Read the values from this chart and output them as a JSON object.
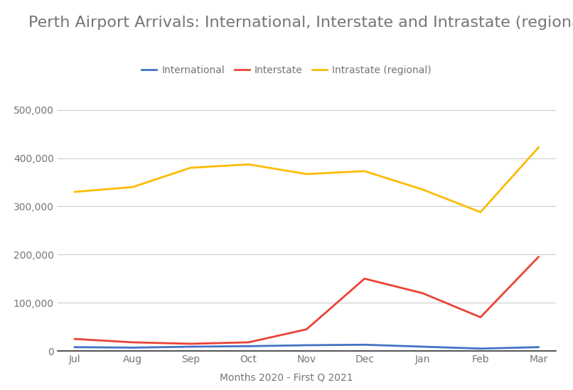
{
  "title": "Perth Airport Arrivals: International, Interstate and Intrastate (regional)",
  "xlabel": "Months 2020 - First Q 2021",
  "months": [
    "Jul",
    "Aug",
    "Sep",
    "Oct",
    "Nov",
    "Dec",
    "Jan",
    "Feb",
    "Mar"
  ],
  "international": [
    8000,
    7000,
    9000,
    10000,
    12000,
    13000,
    9000,
    5000,
    8000
  ],
  "interstate": [
    25000,
    18000,
    15000,
    18000,
    45000,
    150000,
    120000,
    70000,
    195000
  ],
  "intrastate": [
    330000,
    340000,
    380000,
    387000,
    367000,
    373000,
    335000,
    288000,
    422000
  ],
  "international_color": "#4472c4",
  "interstate_color": "#ea4335",
  "intrastate_color": "#fbbc04",
  "ylim": [
    0,
    550000
  ],
  "yticks": [
    0,
    100000,
    200000,
    300000,
    400000,
    500000
  ],
  "legend_labels": [
    "International",
    "Interstate",
    "Intrastate (regional)"
  ],
  "title_fontsize": 16,
  "axis_label_fontsize": 10,
  "tick_fontsize": 10,
  "legend_fontsize": 10,
  "background_color": "#ffffff",
  "grid_color": "#cccccc",
  "title_color": "#757575",
  "tick_color": "#757575",
  "xlabel_color": "#757575",
  "bottom_spine_color": "#333333"
}
